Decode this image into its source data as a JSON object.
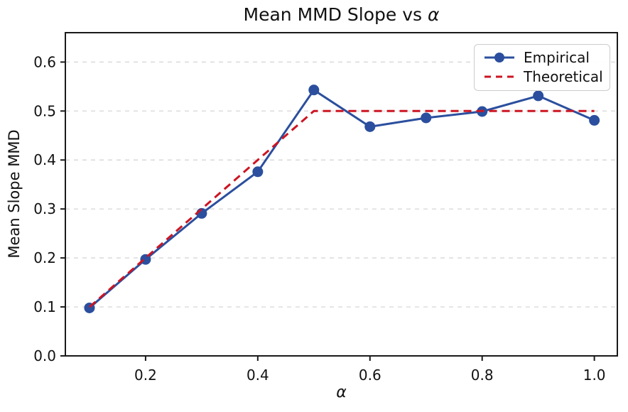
{
  "figure": {
    "title_prefix": "Mean MMD Slope vs ",
    "title_math": "α"
  },
  "chart_data": {
    "type": "line",
    "title": "Mean MMD Slope vs α",
    "xlabel": "α",
    "ylabel": "Mean Slope MMD",
    "x": [
      0.1,
      0.2,
      0.3,
      0.4,
      0.5,
      0.6,
      0.7,
      0.8,
      0.9,
      1.0
    ],
    "series": [
      {
        "name": "Empirical",
        "color": "#2b4f9e",
        "style": "solid",
        "marker": "circle",
        "values": [
          0.098,
          0.197,
          0.291,
          0.376,
          0.543,
          0.468,
          0.486,
          0.499,
          0.531,
          0.481
        ]
      },
      {
        "name": "Theoretical",
        "color": "#cc1522",
        "style": "dashed",
        "marker": "none",
        "values": [
          0.1,
          0.2,
          0.3,
          0.4,
          0.5,
          0.5,
          0.5,
          0.5,
          0.5,
          0.5
        ]
      }
    ],
    "xlim": [
      0.057,
      1.041
    ],
    "ylim": [
      0,
      0.66
    ],
    "xticks": [
      0.2,
      0.4,
      0.6,
      0.8,
      1.0
    ],
    "yticks": [
      0.0,
      0.1,
      0.2,
      0.3,
      0.4,
      0.5,
      0.6
    ],
    "grid": "horizontal-dashed",
    "legend_position": "upper-right"
  },
  "colors": {
    "grid": "#dadada",
    "spine": "#1a1a1a",
    "text": "#111111",
    "background": "#ffffff"
  }
}
